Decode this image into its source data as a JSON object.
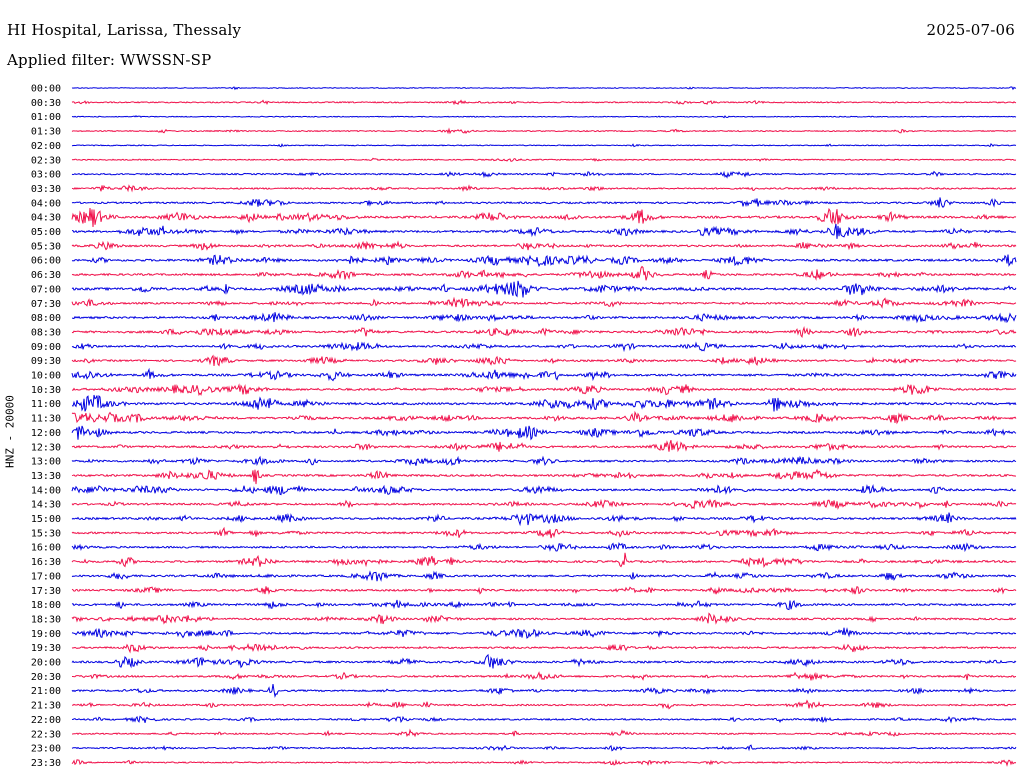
{
  "header": {
    "station": "HI Hospital, Larissa, Thessaly",
    "date": "2025-07-06",
    "filter": "Applied filter: WWSSN-SP"
  },
  "chart_data": {
    "type": "line",
    "title": "HI Hospital, Larissa, Thessaly",
    "subtitle": "Applied filter: WWSSN-SP",
    "ylabel": "HNZ - 20000",
    "rows": [
      "00:00",
      "00:30",
      "01:00",
      "01:30",
      "02:00",
      "02:30",
      "03:00",
      "03:30",
      "04:00",
      "04:30",
      "05:00",
      "05:30",
      "06:00",
      "06:30",
      "07:00",
      "07:30",
      "08:00",
      "08:30",
      "09:00",
      "09:30",
      "10:00",
      "10:30",
      "11:00",
      "11:30",
      "12:00",
      "12:30",
      "13:00",
      "13:30",
      "14:00",
      "14:30",
      "15:00",
      "15:30",
      "16:00",
      "16:30",
      "17:00",
      "17:30",
      "18:00",
      "18:30",
      "19:00",
      "19:30",
      "20:00",
      "20:30",
      "21:00",
      "21:30",
      "22:00",
      "22:30",
      "23:00",
      "23:30"
    ],
    "colors": [
      "#0000e0",
      "#f0104a"
    ],
    "activity": [
      0.05,
      0.25,
      0.05,
      0.2,
      0.1,
      0.2,
      0.35,
      0.4,
      0.5,
      0.75,
      0.7,
      0.6,
      0.75,
      0.65,
      0.85,
      0.6,
      0.7,
      0.7,
      0.6,
      0.55,
      0.7,
      0.7,
      0.75,
      0.7,
      0.7,
      0.65,
      0.6,
      0.65,
      0.7,
      0.6,
      0.7,
      0.6,
      0.55,
      0.65,
      0.6,
      0.6,
      0.65,
      0.6,
      0.6,
      0.55,
      0.6,
      0.55,
      0.5,
      0.45,
      0.45,
      0.35,
      0.35,
      0.3
    ]
  }
}
